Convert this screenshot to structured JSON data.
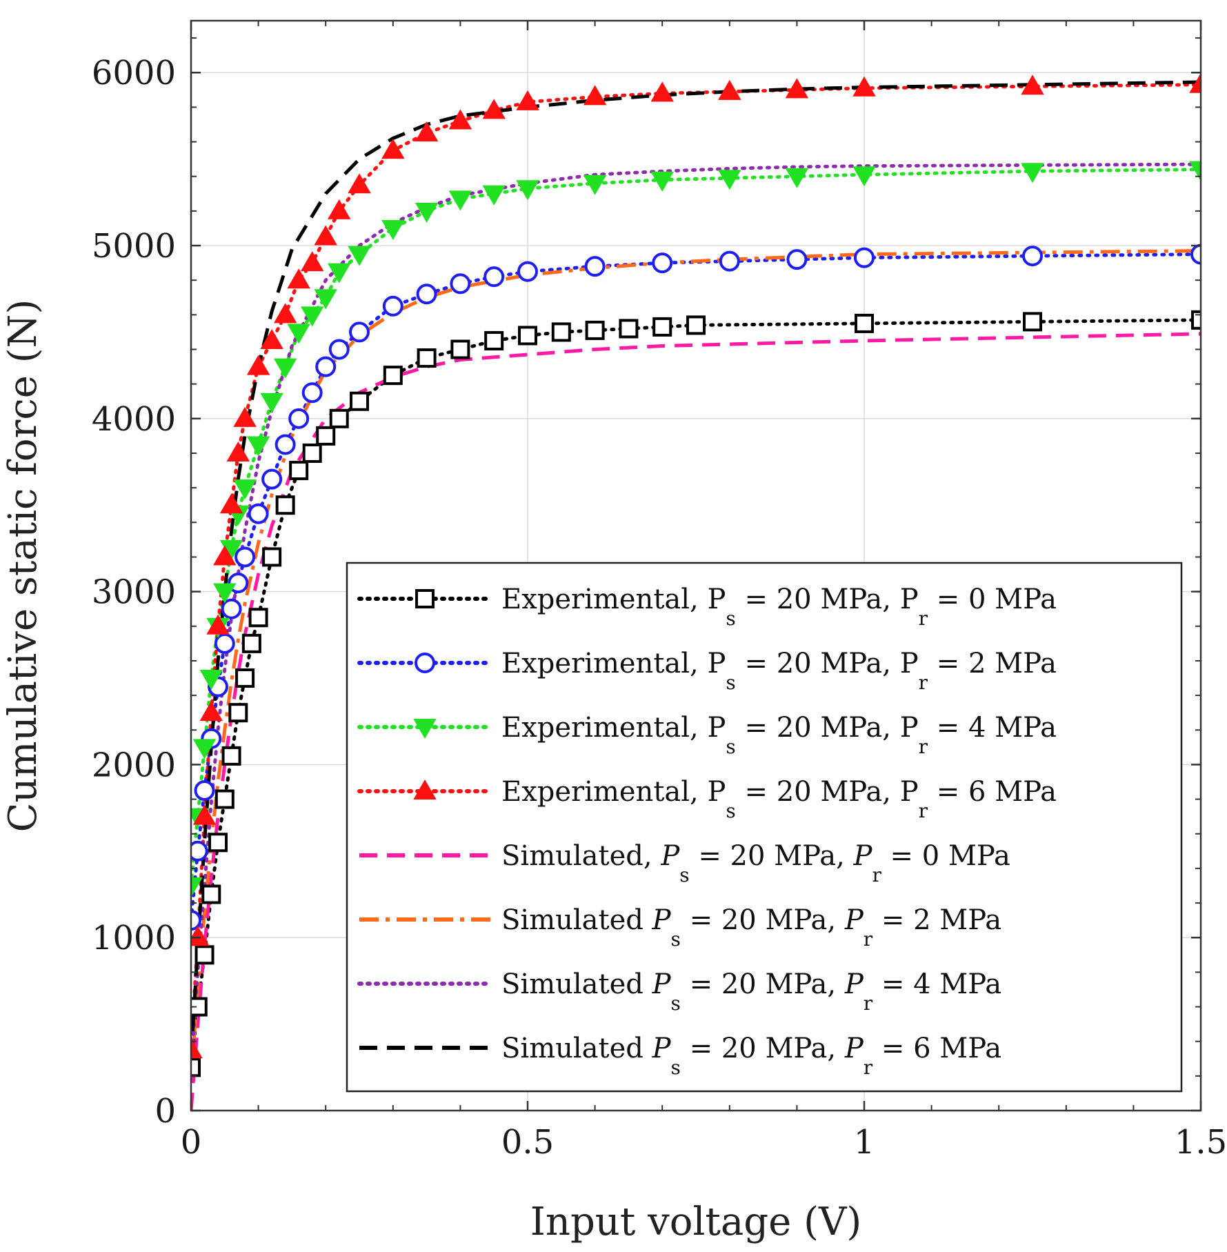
{
  "chart_data": {
    "type": "line",
    "xlabel": "Input voltage (V)",
    "ylabel": "Cumulative static force (N)",
    "xlim": [
      0,
      1.5
    ],
    "ylim": [
      0,
      6300
    ],
    "xticks": [
      0,
      0.5,
      1,
      1.5
    ],
    "xtick_labels": [
      "0",
      "0.5",
      "1",
      "1.5"
    ],
    "yticks": [
      0,
      1000,
      2000,
      3000,
      4000,
      5000,
      6000
    ],
    "ytick_labels": [
      "0",
      "1000",
      "2000",
      "3000",
      "4000",
      "5000",
      "6000"
    ],
    "grid": true,
    "legend_position": "bottom-right",
    "series": [
      {
        "name": "Experimental",
        "legend": {
          "prefix": "Experimental,",
          "ps_sym": "P",
          "ps_sub": "s",
          "ps_val": "= 20 MPa,",
          "pr_sym": "P",
          "pr_sub": "r",
          "pr_val": "= 0 MPa"
        },
        "color": "#000000",
        "style": "dotted",
        "marker": "square",
        "x": [
          0,
          0.01,
          0.02,
          0.03,
          0.04,
          0.05,
          0.06,
          0.07,
          0.08,
          0.09,
          0.1,
          0.12,
          0.14,
          0.16,
          0.18,
          0.2,
          0.22,
          0.25,
          0.3,
          0.35,
          0.4,
          0.45,
          0.5,
          0.55,
          0.6,
          0.65,
          0.7,
          0.75,
          1.0,
          1.25,
          1.5
        ],
        "y": [
          250,
          600,
          900,
          1250,
          1550,
          1800,
          2050,
          2300,
          2500,
          2700,
          2850,
          3200,
          3500,
          3700,
          3800,
          3900,
          4000,
          4100,
          4250,
          4350,
          4400,
          4450,
          4480,
          4500,
          4510,
          4520,
          4530,
          4540,
          4550,
          4560,
          4570
        ]
      },
      {
        "name": "Experimental",
        "legend": {
          "prefix": "Experimental,",
          "ps_sym": "P",
          "ps_sub": "s",
          "ps_val": "= 20 MPa,",
          "pr_sym": "P",
          "pr_sub": "r",
          "pr_val": "= 2 MPa"
        },
        "color": "#1e1ef0",
        "style": "dotted",
        "marker": "circle",
        "x": [
          0,
          0.01,
          0.02,
          0.03,
          0.04,
          0.05,
          0.06,
          0.07,
          0.08,
          0.1,
          0.12,
          0.14,
          0.16,
          0.18,
          0.2,
          0.22,
          0.25,
          0.3,
          0.35,
          0.4,
          0.45,
          0.5,
          0.6,
          0.7,
          0.8,
          0.9,
          1.0,
          1.25,
          1.5
        ],
        "y": [
          1100,
          1500,
          1850,
          2150,
          2450,
          2700,
          2900,
          3050,
          3200,
          3450,
          3650,
          3850,
          4000,
          4150,
          4300,
          4400,
          4500,
          4650,
          4720,
          4780,
          4820,
          4850,
          4880,
          4900,
          4910,
          4920,
          4930,
          4940,
          4950
        ]
      },
      {
        "name": "Experimental",
        "legend": {
          "prefix": "Experimental,",
          "ps_sym": "P",
          "ps_sub": "s",
          "ps_val": "= 20 MPa,",
          "pr_sym": "P",
          "pr_sub": "r",
          "pr_val": "= 4 MPa"
        },
        "color": "#22e022",
        "style": "dotted",
        "marker": "triangle-down",
        "x": [
          0,
          0.01,
          0.02,
          0.03,
          0.04,
          0.05,
          0.06,
          0.07,
          0.08,
          0.1,
          0.12,
          0.14,
          0.16,
          0.18,
          0.2,
          0.22,
          0.25,
          0.3,
          0.35,
          0.4,
          0.45,
          0.5,
          0.6,
          0.7,
          0.8,
          0.9,
          1.0,
          1.25,
          1.5
        ],
        "y": [
          1300,
          1700,
          2100,
          2500,
          2800,
          3000,
          3250,
          3450,
          3600,
          3850,
          4100,
          4300,
          4500,
          4600,
          4700,
          4850,
          4950,
          5100,
          5200,
          5270,
          5300,
          5330,
          5360,
          5380,
          5390,
          5400,
          5410,
          5430,
          5440
        ]
      },
      {
        "name": "Experimental",
        "legend": {
          "prefix": "Experimental,",
          "ps_sym": "P",
          "ps_sub": "s",
          "ps_val": "= 20 MPa,",
          "pr_sym": "P",
          "pr_sub": "r",
          "pr_val": "= 6 MPa"
        },
        "color": "#ff1010",
        "style": "dotted",
        "marker": "triangle-up",
        "x": [
          0,
          0.01,
          0.02,
          0.03,
          0.04,
          0.05,
          0.06,
          0.07,
          0.08,
          0.1,
          0.12,
          0.14,
          0.16,
          0.18,
          0.2,
          0.22,
          0.25,
          0.3,
          0.35,
          0.4,
          0.45,
          0.5,
          0.6,
          0.7,
          0.8,
          0.9,
          1.0,
          1.25,
          1.5
        ],
        "y": [
          350,
          1000,
          1700,
          2300,
          2800,
          3200,
          3500,
          3800,
          4000,
          4300,
          4450,
          4600,
          4800,
          4900,
          5050,
          5200,
          5350,
          5550,
          5650,
          5720,
          5780,
          5830,
          5860,
          5880,
          5890,
          5900,
          5910,
          5920,
          5930
        ]
      },
      {
        "name": "Simulated",
        "legend": {
          "prefix": "Simulated,",
          "ps_sym": "P",
          "ps_sub": "s",
          "ps_val": "= 20 MPa,",
          "pr_sym": "P",
          "pr_sub": "r",
          "pr_val": "= 0 MPa"
        },
        "color": "#ff1aa6",
        "style": "dashed",
        "marker": "none",
        "x": [
          0,
          0.01,
          0.02,
          0.03,
          0.04,
          0.05,
          0.06,
          0.07,
          0.08,
          0.1,
          0.12,
          0.15,
          0.2,
          0.25,
          0.3,
          0.35,
          0.4,
          0.5,
          0.6,
          0.7,
          0.8,
          1.0,
          1.25,
          1.5
        ],
        "y": [
          0,
          500,
          950,
          1350,
          1700,
          2000,
          2280,
          2530,
          2750,
          3100,
          3380,
          3700,
          4000,
          4150,
          4240,
          4300,
          4340,
          4370,
          4400,
          4420,
          4430,
          4450,
          4470,
          4490
        ]
      },
      {
        "name": "Simulated",
        "legend": {
          "prefix": "Simulated",
          "ps_sym": "P",
          "ps_sub": "s",
          "ps_val": "= 20 MPa,",
          "pr_sym": "P",
          "pr_sub": "r",
          "pr_val": "= 2 MPa"
        },
        "color": "#ff6a1a",
        "style": "dashdot",
        "marker": "none",
        "x": [
          0,
          0.01,
          0.02,
          0.03,
          0.04,
          0.05,
          0.06,
          0.07,
          0.08,
          0.1,
          0.12,
          0.15,
          0.2,
          0.25,
          0.3,
          0.35,
          0.4,
          0.5,
          0.6,
          0.7,
          0.8,
          1.0,
          1.25,
          1.5
        ],
        "y": [
          200,
          700,
          1150,
          1550,
          1900,
          2200,
          2480,
          2720,
          2930,
          3280,
          3560,
          3900,
          4280,
          4480,
          4610,
          4700,
          4760,
          4830,
          4870,
          4900,
          4920,
          4950,
          4960,
          4970
        ]
      },
      {
        "name": "Simulated",
        "legend": {
          "prefix": "Simulated",
          "ps_sym": "P",
          "ps_sub": "s",
          "ps_val": "= 20 MPa,",
          "pr_sym": "P",
          "pr_sub": "r",
          "pr_val": "= 4 MPa"
        },
        "color": "#8e2aae",
        "style": "dotted",
        "marker": "none",
        "x": [
          0,
          0.01,
          0.02,
          0.03,
          0.04,
          0.05,
          0.06,
          0.07,
          0.08,
          0.1,
          0.12,
          0.15,
          0.2,
          0.25,
          0.3,
          0.35,
          0.4,
          0.5,
          0.6,
          0.7,
          0.8,
          0.9,
          1.0,
          1.25,
          1.5
        ],
        "y": [
          250,
          800,
          1300,
          1780,
          2200,
          2550,
          2850,
          3100,
          3350,
          3750,
          4050,
          4420,
          4800,
          5000,
          5130,
          5220,
          5290,
          5360,
          5410,
          5430,
          5445,
          5455,
          5460,
          5465,
          5470
        ]
      },
      {
        "name": "Simulated",
        "legend": {
          "prefix": "Simulated",
          "ps_sym": "P",
          "ps_sub": "s",
          "ps_val": "= 20 MPa,",
          "pr_sym": "P",
          "pr_sub": "r",
          "pr_val": "= 6 MPa"
        },
        "color": "#000000",
        "style": "dashed",
        "marker": "none",
        "x": [
          0,
          0.01,
          0.02,
          0.03,
          0.04,
          0.05,
          0.06,
          0.07,
          0.08,
          0.1,
          0.12,
          0.15,
          0.2,
          0.25,
          0.3,
          0.35,
          0.4,
          0.5,
          0.6,
          0.7,
          0.8,
          0.9,
          1.0,
          1.25,
          1.5
        ],
        "y": [
          300,
          950,
          1550,
          2100,
          2600,
          3000,
          3350,
          3650,
          3900,
          4300,
          4620,
          4980,
          5300,
          5500,
          5620,
          5700,
          5750,
          5800,
          5840,
          5870,
          5890,
          5905,
          5915,
          5930,
          5945
        ]
      }
    ]
  }
}
